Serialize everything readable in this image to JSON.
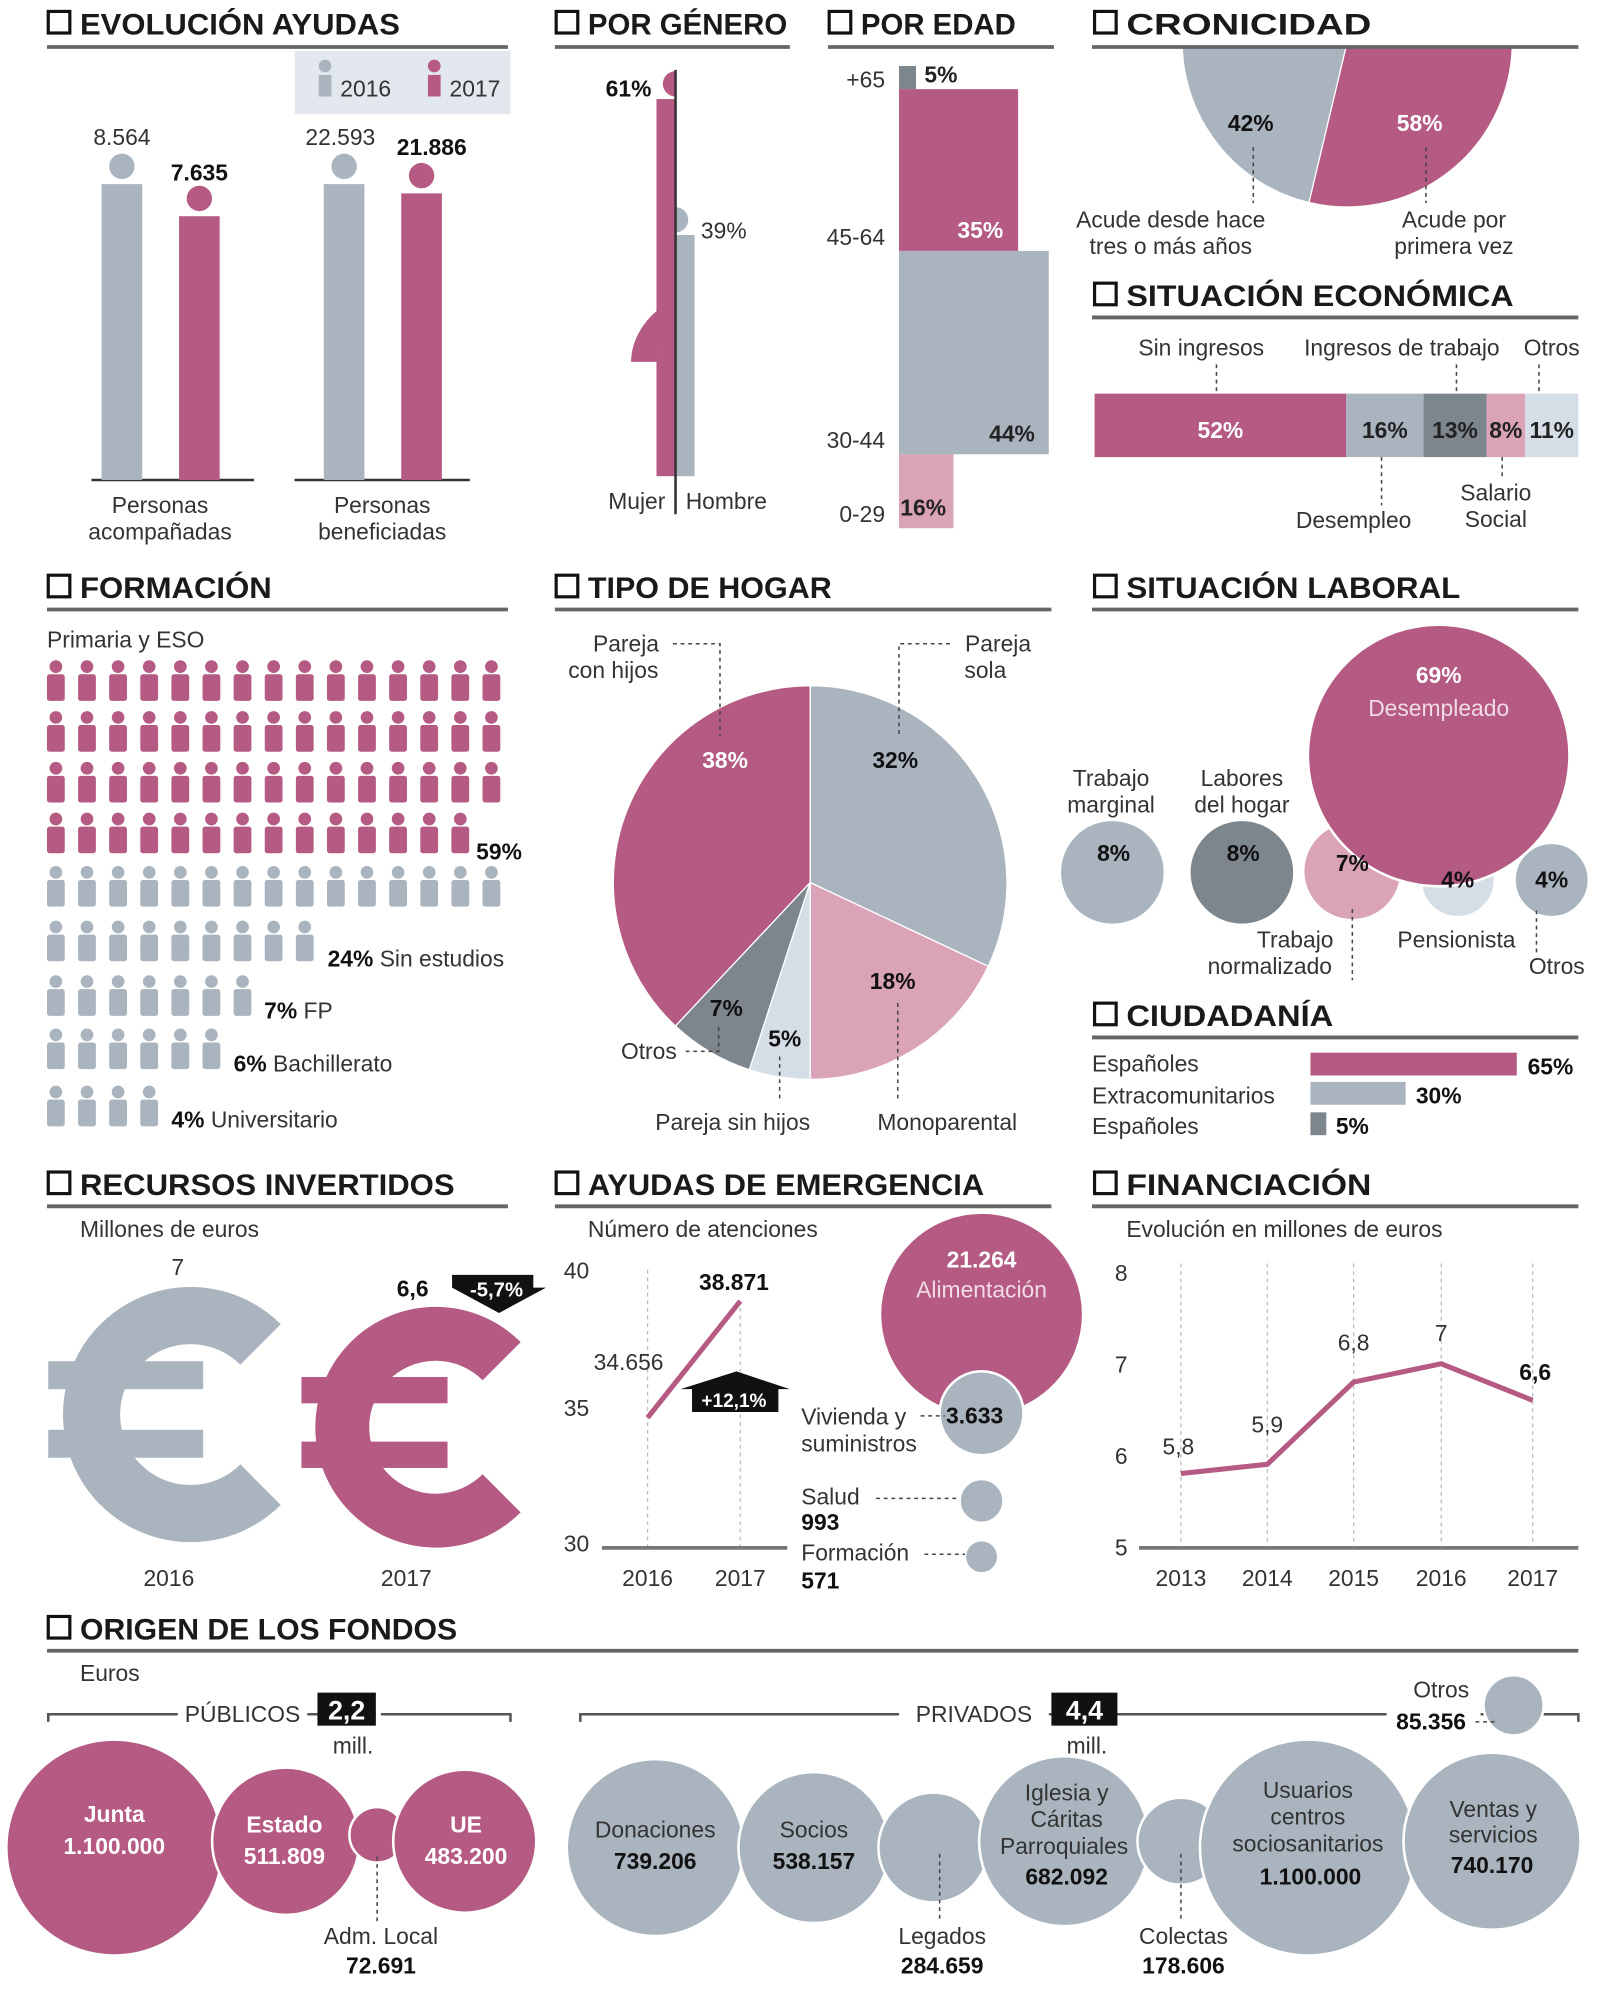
{
  "colors": {
    "pink": "#b55a82",
    "gray": "#a9b4bf",
    "dark_gray": "#7d858d",
    "light_pink": "#dba3b8",
    "light_blue": "#d5dde6",
    "legend_bg": "#e3e8ee"
  },
  "chart_data": [
    {
      "type": "bar",
      "title": "EVOLUCIÓN AYUDAS",
      "categories": [
        [
          "Personas",
          "acompañadas"
        ],
        [
          "Personas",
          "beneficiadas"
        ]
      ],
      "series": [
        {
          "name": "2016",
          "values": [
            8564,
            22593
          ],
          "labels": [
            "8.564",
            "22.593"
          ],
          "color": "#a9b4bf"
        },
        {
          "name": "2017",
          "values": [
            7635,
            21886
          ],
          "labels": [
            "7.635",
            "21.886"
          ],
          "color": "#b55a82"
        }
      ],
      "legend": "top-right"
    },
    {
      "type": "bar",
      "title": "POR GÉNERO",
      "categories": [
        "Mujer",
        "Hombre"
      ],
      "values": [
        61,
        39
      ],
      "labels": [
        "61%",
        "39%"
      ],
      "colors": [
        "#b55a82",
        "#a9b4bf"
      ]
    },
    {
      "type": "bar",
      "title": "POR EDAD",
      "categories": [
        "+65",
        "45-64",
        "30-44",
        "0-29"
      ],
      "values": [
        5,
        35,
        44,
        16
      ],
      "labels": [
        "5%",
        "35%",
        "44%",
        "16%"
      ],
      "colors": [
        "#7d858d",
        "#b55a82",
        "#a9b4bf",
        "#dba3b8"
      ]
    },
    {
      "type": "pie",
      "title": "CRONICIDAD",
      "categories": [
        [
          "Acude desde hace",
          "tres o más años"
        ],
        [
          "Acude por",
          "primera vez"
        ]
      ],
      "values": [
        42,
        58
      ],
      "labels": [
        "42%",
        "58%"
      ],
      "colors": [
        "#a9b4bf",
        "#b55a82"
      ]
    },
    {
      "type": "bar",
      "title": "SITUACIÓN ECONÓMICA",
      "stacked": true,
      "categories": [
        "Sin ingresos",
        "Desempleo",
        "Ingresos de trabajo",
        [
          "Salario",
          "Social"
        ],
        "Otros"
      ],
      "values": [
        52,
        16,
        13,
        8,
        11
      ],
      "labels": [
        "52%",
        "16%",
        "13%",
        "8%",
        "11%"
      ],
      "colors": [
        "#b55a82",
        "#a9b4bf",
        "#7d858d",
        "#dba3b8",
        "#d5dde6"
      ]
    },
    {
      "type": "bar",
      "title": "FORMACIÓN",
      "categories": [
        "Primaria y ESO",
        "Sin estudios",
        "FP",
        "Bachillerato",
        "Universitario"
      ],
      "values": [
        59,
        24,
        7,
        6,
        4
      ],
      "labels": [
        "59%",
        "24%",
        "7%",
        "6%",
        "4%"
      ],
      "colors": [
        "#b55a82",
        "#a9b4bf"
      ]
    },
    {
      "type": "pie",
      "title": "TIPO DE HOGAR",
      "categories": [
        [
          "Pareja",
          "sola"
        ],
        "Monoparental",
        "Pareja sin hijos",
        "Otros",
        [
          "Pareja",
          "con hijos"
        ]
      ],
      "values": [
        32,
        18,
        5,
        7,
        38
      ],
      "labels": [
        "32%",
        "18%",
        "5%",
        "7%",
        "38%"
      ],
      "colors": [
        "#a9b4bf",
        "#dba3b8",
        "#d5dde6",
        "#7d858d",
        "#b55a82"
      ]
    },
    {
      "type": "scatter",
      "title": "SITUACIÓN LABORAL",
      "categories": [
        "Desempleado",
        [
          "Trabajo",
          "marginal"
        ],
        [
          "Labores",
          "del hogar"
        ],
        [
          "Trabajo",
          "normalizado"
        ],
        "Pensionista",
        "Otros"
      ],
      "values": [
        69,
        8,
        8,
        7,
        4,
        4
      ],
      "labels": [
        "69%",
        "8%",
        "8%",
        "7%",
        "4%",
        "4%"
      ],
      "colors": [
        "#b55a82",
        "#a9b4bf",
        "#7d858d",
        "#dba3b8",
        "#d5dde6",
        "#a9b4bf"
      ]
    },
    {
      "type": "bar",
      "title": "CIUDADANÍA",
      "categories": [
        "Españoles",
        "Extracomunitarios",
        "Españoles"
      ],
      "values": [
        65,
        30,
        5
      ],
      "labels": [
        "65%",
        "30%",
        "5%"
      ],
      "colors": [
        "#b55a82",
        "#a9b4bf",
        "#7d858d"
      ]
    },
    {
      "type": "bar",
      "title": "RECURSOS INVERTIDOS",
      "subtitle": "Millones de euros",
      "categories": [
        "2016",
        "2017"
      ],
      "values": [
        7,
        6.6
      ],
      "labels": [
        "7",
        "6,6"
      ],
      "change": "-5,7%",
      "colors": [
        "#a9b4bf",
        "#b55a82"
      ]
    },
    {
      "type": "line",
      "title": "AYUDAS DE EMERGENCIA",
      "subtitle": "Número de atenciones",
      "x": [
        "2016",
        "2017"
      ],
      "values": [
        34656,
        38871
      ],
      "labels": [
        "34.656",
        "38.871"
      ],
      "ylim": [
        30000,
        40000
      ],
      "yticks": [
        "40",
        "35",
        "30"
      ],
      "change": "+12,1%"
    },
    {
      "type": "scatter",
      "categories": [
        "Alimentación",
        [
          "Vivienda y",
          "suministros"
        ],
        "Salud",
        "Formación"
      ],
      "values": [
        21264,
        3633,
        993,
        571
      ],
      "labels": [
        "21.264",
        "3.633",
        "993",
        "571"
      ]
    },
    {
      "type": "line",
      "title": "FINANCIACIÓN",
      "subtitle": "Evolución en millones de euros",
      "x": [
        "2013",
        "2014",
        "2015",
        "2016",
        "2017"
      ],
      "values": [
        5.8,
        5.9,
        6.8,
        7,
        6.6
      ],
      "labels": [
        "5,8",
        "5,9",
        "6,8",
        "7",
        "6,6"
      ],
      "ylim": [
        5,
        8
      ],
      "yticks": [
        "8",
        "7",
        "6",
        "5"
      ],
      "grid": true
    },
    {
      "type": "scatter",
      "title": "ORIGEN DE LOS FONDOS",
      "subtitle": "Euros",
      "groups": [
        {
          "name": "PÚBLICOS",
          "total": "2,2",
          "unit": "mill.",
          "items": [
            {
              "label": [
                "Junta"
              ],
              "value": 1100000,
              "text": "1.100.000"
            },
            {
              "label": [
                "Estado"
              ],
              "value": 511809,
              "text": "511.809"
            },
            {
              "label": [
                "Adm. Local"
              ],
              "value": 72691,
              "text": "72.691"
            },
            {
              "label": [
                "UE"
              ],
              "value": 483200,
              "text": "483.200"
            }
          ]
        },
        {
          "name": "PRIVADOS",
          "total": "4,4",
          "unit": "mill.",
          "items": [
            {
              "label": [
                "Donaciones"
              ],
              "value": 739206,
              "text": "739.206"
            },
            {
              "label": [
                "Socios"
              ],
              "value": 538157,
              "text": "538.157"
            },
            {
              "label": [
                "Legados"
              ],
              "value": 284659,
              "text": "284.659"
            },
            {
              "label": [
                "Iglesia y",
                "Cáritas",
                "Parroquiales"
              ],
              "value": 682092,
              "text": "682.092"
            },
            {
              "label": [
                "Colectas"
              ],
              "value": 178606,
              "text": "178.606"
            },
            {
              "label": [
                "Usuarios",
                "centros",
                "sociosanitarios"
              ],
              "value": 1100000,
              "text": "1.100.000"
            },
            {
              "label": [
                "Ventas y",
                "servicios"
              ],
              "value": 740170,
              "text": "740.170"
            },
            {
              "label": [
                "Otros"
              ],
              "value": 85356,
              "text": "85.356"
            }
          ]
        }
      ]
    }
  ]
}
